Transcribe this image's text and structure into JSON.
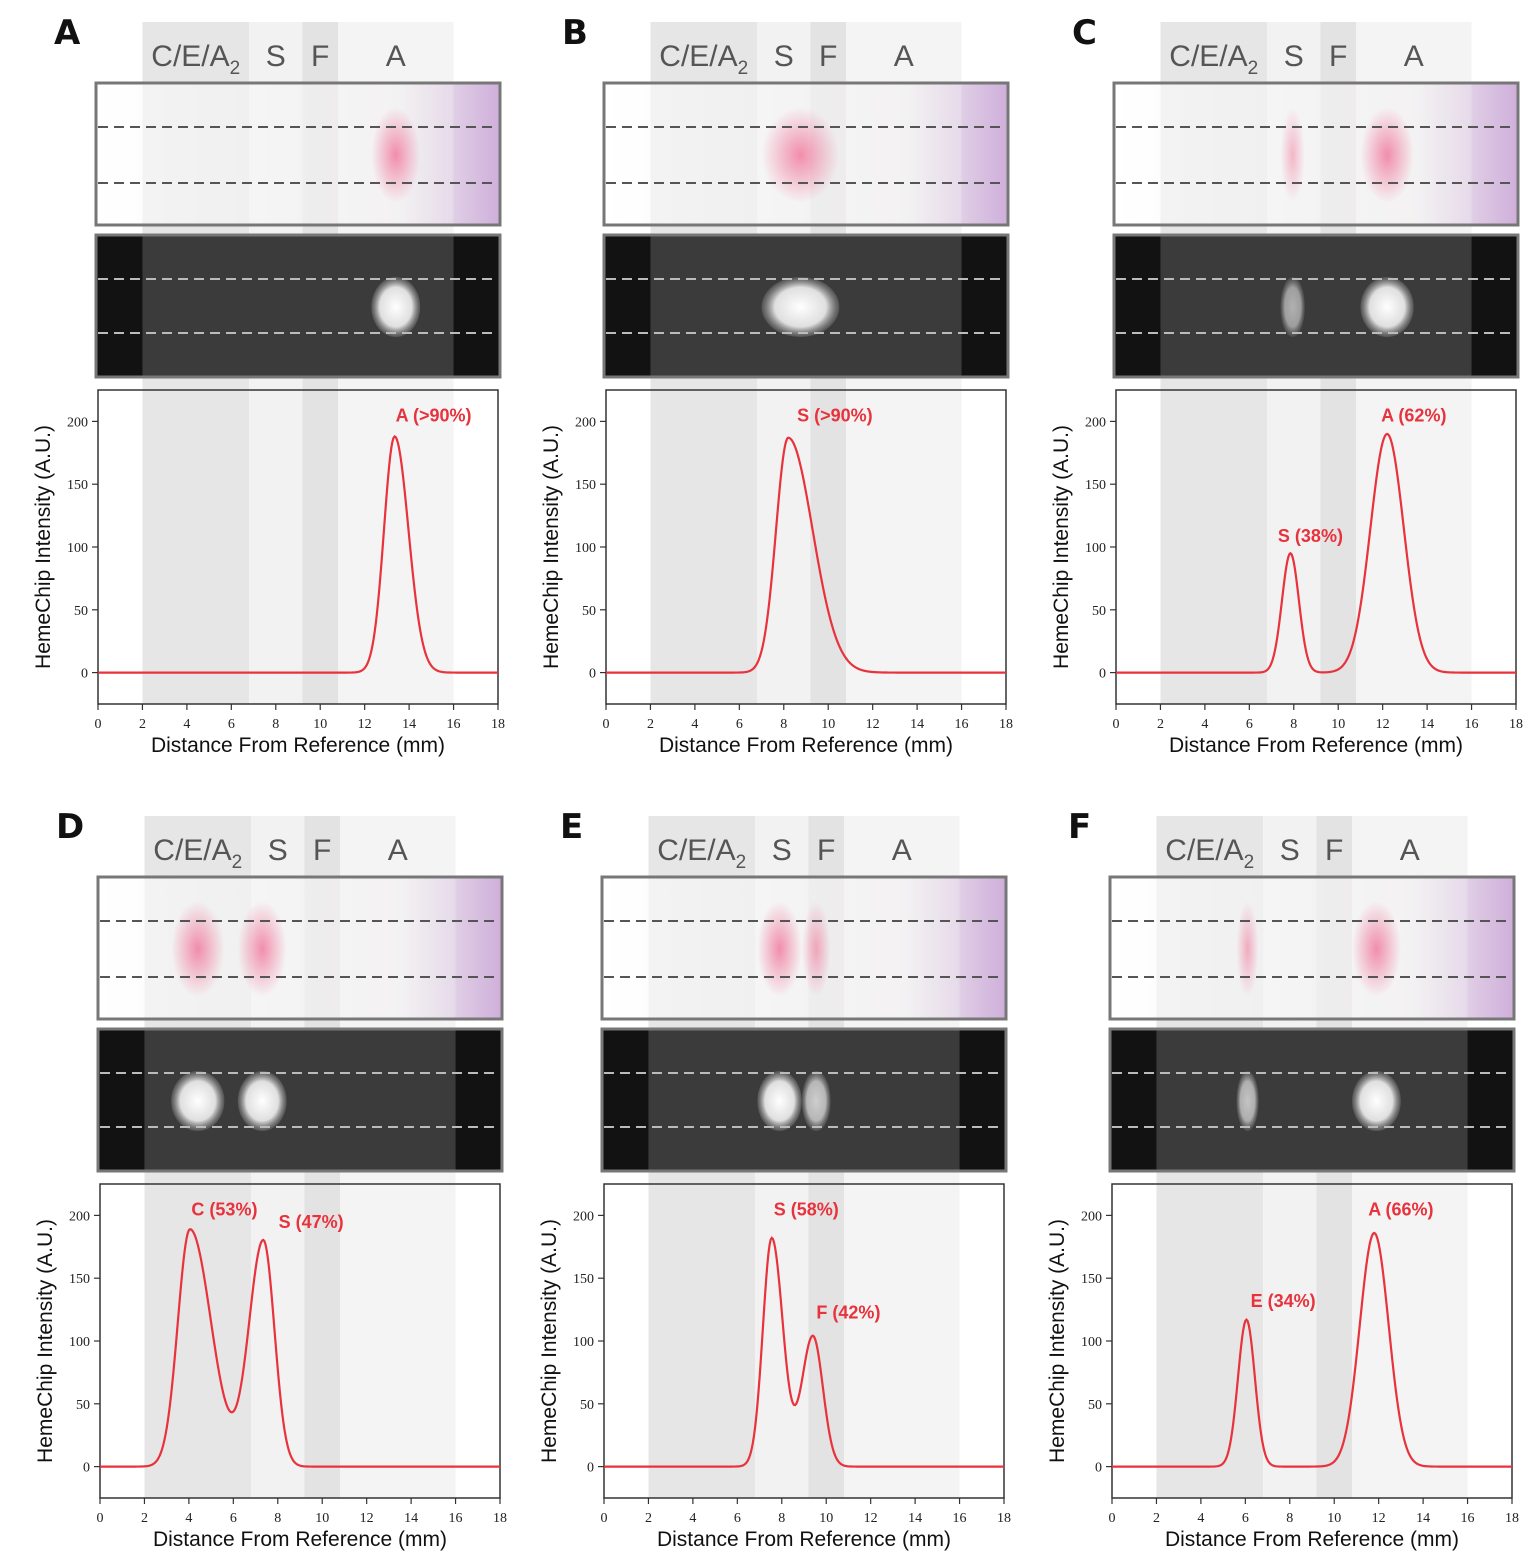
{
  "zones": [
    {
      "name": "C/E/A",
      "sub": "2",
      "x0": 2.0,
      "x1": 6.8,
      "shade": "#e6e6e6"
    },
    {
      "name": "S",
      "sub": "",
      "x0": 6.8,
      "x1": 9.2,
      "shade": "#f2f2f2"
    },
    {
      "name": "F",
      "sub": "",
      "x0": 9.2,
      "x1": 10.8,
      "shade": "#e3e3e3"
    },
    {
      "name": "A",
      "sub": "",
      "x0": 10.8,
      "x1": 16.0,
      "shade": "#f4f4f4"
    }
  ],
  "colors": {
    "curve": "#e8323c",
    "label": "#e8323c",
    "strip_base": "#f3f1f2",
    "strip_tint_purple": "#c9a6d6",
    "stain_pink": "#f06e95",
    "dark_frame": "#121212",
    "dark_inner": "#3b3b3b"
  },
  "chart_data": [
    {
      "type": "line",
      "panel": "A",
      "xlabel": "Distance From Reference (mm)",
      "ylabel": "HemeChip Intensity (A.U.)",
      "xlim": [
        0,
        18
      ],
      "ylim": [
        -25,
        225
      ],
      "xticks": [
        0,
        2,
        4,
        6,
        8,
        10,
        12,
        14,
        16,
        18
      ],
      "yticks": [
        0,
        50,
        100,
        150,
        200
      ],
      "peaks": [
        {
          "center": 13.35,
          "height": 188,
          "width_left": 0.48,
          "width_right": 0.62
        }
      ],
      "annotations": [
        {
          "text": "A (>90%)",
          "x": 15.1,
          "y": 200
        }
      ],
      "strip_bands": [
        {
          "x0": 12.3,
          "x1": 14.5,
          "intensity": 1.0
        }
      ]
    },
    {
      "type": "line",
      "panel": "B",
      "xlabel": "Distance From Reference (mm)",
      "ylabel": "HemeChip Intensity (A.U.)",
      "xlim": [
        0,
        18
      ],
      "ylim": [
        -25,
        225
      ],
      "xticks": [
        0,
        2,
        4,
        6,
        8,
        10,
        12,
        14,
        16,
        18
      ],
      "yticks": [
        0,
        50,
        100,
        150,
        200
      ],
      "peaks": [
        {
          "center": 8.2,
          "height": 187,
          "width_left": 0.55,
          "width_right": 1.1
        }
      ],
      "annotations": [
        {
          "text": "S (>90%)",
          "x": 10.3,
          "y": 200
        }
      ],
      "strip_bands": [
        {
          "x0": 7.0,
          "x1": 10.5,
          "intensity": 1.0
        }
      ]
    },
    {
      "type": "line",
      "panel": "C",
      "xlabel": "Distance From Reference (mm)",
      "ylabel": "HemeChip Intensity (A.U.)",
      "xlim": [
        0,
        18
      ],
      "ylim": [
        -25,
        225
      ],
      "xticks": [
        0,
        2,
        4,
        6,
        8,
        10,
        12,
        14,
        16,
        18
      ],
      "yticks": [
        0,
        50,
        100,
        150,
        200
      ],
      "peaks": [
        {
          "center": 7.85,
          "height": 95,
          "width_left": 0.38,
          "width_right": 0.38
        },
        {
          "center": 12.2,
          "height": 190,
          "width_left": 0.75,
          "width_right": 0.75
        }
      ],
      "annotations": [
        {
          "text": "S (38%)",
          "x": 8.75,
          "y": 104
        },
        {
          "text": "A (62%)",
          "x": 13.4,
          "y": 200
        }
      ],
      "strip_bands": [
        {
          "x0": 7.4,
          "x1": 8.5,
          "intensity": 0.6
        },
        {
          "x0": 11.0,
          "x1": 13.4,
          "intensity": 1.0
        }
      ]
    },
    {
      "type": "line",
      "panel": "D",
      "xlabel": "Distance From Reference (mm)",
      "ylabel": "HemeChip Intensity (A.U.)",
      "xlim": [
        0,
        18
      ],
      "ylim": [
        -25,
        225
      ],
      "xticks": [
        0,
        2,
        4,
        6,
        8,
        10,
        12,
        14,
        16,
        18
      ],
      "yticks": [
        0,
        50,
        100,
        150,
        200
      ],
      "peaks": [
        {
          "center": 4.05,
          "height": 189,
          "width_left": 0.55,
          "width_right": 0.95
        },
        {
          "center": 7.35,
          "height": 180,
          "width_left": 0.65,
          "width_right": 0.5
        }
      ],
      "annotations": [
        {
          "text": "C (53%)",
          "x": 5.6,
          "y": 200
        },
        {
          "text": "S (47%)",
          "x": 9.5,
          "y": 190
        }
      ],
      "strip_bands": [
        {
          "x0": 3.2,
          "x1": 5.6,
          "intensity": 1.0
        },
        {
          "x0": 6.2,
          "x1": 8.4,
          "intensity": 1.0
        }
      ]
    },
    {
      "type": "line",
      "panel": "E",
      "xlabel": "Distance From Reference (mm)",
      "ylabel": "HemeChip Intensity (A.U.)",
      "xlim": [
        0,
        18
      ],
      "ylim": [
        -25,
        225
      ],
      "xticks": [
        0,
        2,
        4,
        6,
        8,
        10,
        12,
        14,
        16,
        18
      ],
      "yticks": [
        0,
        50,
        100,
        150,
        200
      ],
      "peaks": [
        {
          "center": 7.55,
          "height": 182,
          "width_left": 0.4,
          "width_right": 0.5
        },
        {
          "center": 9.4,
          "height": 104,
          "width_left": 0.5,
          "width_right": 0.45
        }
      ],
      "annotations": [
        {
          "text": "S (58%)",
          "x": 9.1,
          "y": 200
        },
        {
          "text": "F (42%)",
          "x": 11.0,
          "y": 118
        }
      ],
      "strip_bands": [
        {
          "x0": 6.9,
          "x1": 8.9,
          "intensity": 1.0
        },
        {
          "x0": 8.9,
          "x1": 10.2,
          "intensity": 0.75
        }
      ]
    },
    {
      "type": "line",
      "panel": "F",
      "xlabel": "Distance From Reference (mm)",
      "ylabel": "HemeChip Intensity (A.U.)",
      "xlim": [
        0,
        18
      ],
      "ylim": [
        -25,
        225
      ],
      "xticks": [
        0,
        2,
        4,
        6,
        8,
        10,
        12,
        14,
        16,
        18
      ],
      "yticks": [
        0,
        50,
        100,
        150,
        200
      ],
      "peaks": [
        {
          "center": 6.05,
          "height": 117,
          "width_left": 0.38,
          "width_right": 0.38
        },
        {
          "center": 11.8,
          "height": 186,
          "width_left": 0.65,
          "width_right": 0.65
        }
      ],
      "annotations": [
        {
          "text": "E (34%)",
          "x": 7.7,
          "y": 127
        },
        {
          "text": "A (66%)",
          "x": 13.0,
          "y": 200
        }
      ],
      "strip_bands": [
        {
          "x0": 5.6,
          "x1": 6.6,
          "intensity": 0.7
        },
        {
          "x0": 10.8,
          "x1": 13.0,
          "intensity": 1.0
        }
      ]
    }
  ]
}
